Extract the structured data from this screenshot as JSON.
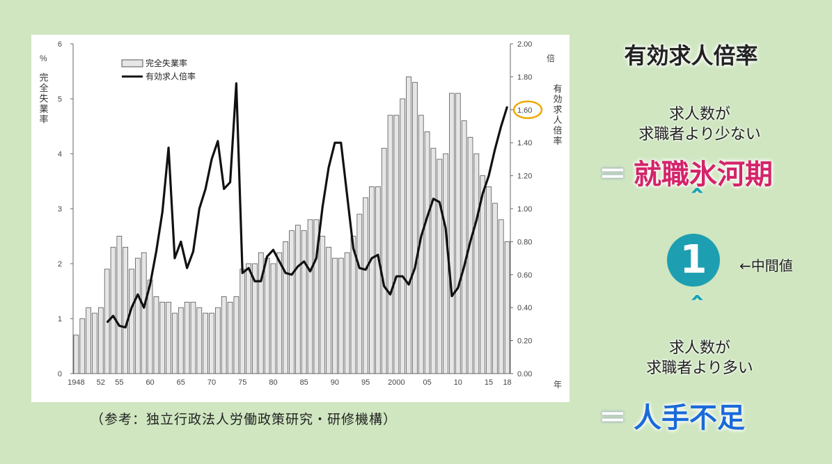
{
  "chart_data": {
    "type": "bar+line",
    "categories": [
      "1948",
      "1949",
      "1950",
      "1951",
      "1952",
      "1953",
      "1954",
      "1955",
      "1956",
      "1957",
      "1958",
      "1959",
      "1960",
      "1961",
      "1962",
      "1963",
      "1964",
      "1965",
      "1966",
      "1967",
      "1968",
      "1969",
      "1970",
      "1971",
      "1972",
      "1973",
      "1974",
      "1975",
      "1976",
      "1977",
      "1978",
      "1979",
      "1980",
      "1981",
      "1982",
      "1983",
      "1984",
      "1985",
      "1986",
      "1987",
      "1988",
      "1989",
      "1990",
      "1991",
      "1992",
      "1993",
      "1994",
      "1995",
      "1996",
      "1997",
      "1998",
      "1999",
      "2000",
      "2001",
      "2002",
      "2003",
      "2004",
      "2005",
      "2006",
      "2007",
      "2008",
      "2009",
      "2010",
      "2011",
      "2012",
      "2013",
      "2014",
      "2015",
      "2016",
      "2017",
      "2018"
    ],
    "x_tick_labels": [
      {
        "year": "1948",
        "label": "1948"
      },
      {
        "year": "1952",
        "label": "52"
      },
      {
        "year": "1955",
        "label": "55"
      },
      {
        "year": "1960",
        "label": "60"
      },
      {
        "year": "1965",
        "label": "65"
      },
      {
        "year": "1970",
        "label": "70"
      },
      {
        "year": "1975",
        "label": "75"
      },
      {
        "year": "1980",
        "label": "80"
      },
      {
        "year": "1985",
        "label": "85"
      },
      {
        "year": "1990",
        "label": "90"
      },
      {
        "year": "1995",
        "label": "95"
      },
      {
        "year": "2000",
        "label": "2000"
      },
      {
        "year": "2005",
        "label": "05"
      },
      {
        "year": "2010",
        "label": "10"
      },
      {
        "year": "2015",
        "label": "15"
      },
      {
        "year": "2018",
        "label": "18"
      }
    ],
    "x_unit": "年",
    "series": [
      {
        "name": "完全失業率",
        "kind": "bar",
        "axis": "left",
        "values": [
          0.7,
          1.0,
          1.2,
          1.1,
          1.2,
          1.9,
          2.3,
          2.5,
          2.3,
          1.9,
          2.1,
          2.2,
          1.7,
          1.4,
          1.3,
          1.3,
          1.1,
          1.2,
          1.3,
          1.3,
          1.2,
          1.1,
          1.1,
          1.2,
          1.4,
          1.3,
          1.4,
          1.9,
          2.0,
          2.0,
          2.2,
          2.1,
          2.0,
          2.2,
          2.4,
          2.6,
          2.7,
          2.6,
          2.8,
          2.8,
          2.5,
          2.3,
          2.1,
          2.1,
          2.2,
          2.5,
          2.9,
          3.2,
          3.4,
          3.4,
          4.1,
          4.7,
          4.7,
          5.0,
          5.4,
          5.3,
          4.7,
          4.4,
          4.1,
          3.9,
          4.0,
          5.1,
          5.1,
          4.6,
          4.3,
          4.0,
          3.6,
          3.4,
          3.1,
          2.8,
          2.4
        ]
      },
      {
        "name": "有効求人倍率",
        "kind": "line",
        "axis": "right",
        "values": [
          null,
          null,
          null,
          null,
          null,
          0.31,
          0.35,
          0.29,
          0.28,
          0.4,
          0.48,
          0.4,
          0.54,
          0.74,
          0.98,
          1.37,
          0.7,
          0.8,
          0.64,
          0.74,
          1.0,
          1.12,
          1.3,
          1.41,
          1.12,
          1.16,
          1.76,
          0.61,
          0.64,
          0.56,
          0.56,
          0.71,
          0.75,
          0.68,
          0.61,
          0.6,
          0.65,
          0.68,
          0.62,
          0.7,
          1.01,
          1.25,
          1.4,
          1.4,
          1.08,
          0.76,
          0.64,
          0.63,
          0.7,
          0.72,
          0.53,
          0.48,
          0.59,
          0.59,
          0.54,
          0.64,
          0.83,
          0.95,
          1.06,
          1.04,
          0.88,
          0.47,
          0.52,
          0.65,
          0.8,
          0.93,
          1.09,
          1.2,
          1.36,
          1.5,
          1.62
        ]
      }
    ],
    "left_axis": {
      "unit": "%",
      "label": "完全失業率",
      "ylim": [
        0,
        6
      ],
      "ticks": [
        "0",
        "1",
        "2",
        "3",
        "4",
        "5",
        "6"
      ]
    },
    "right_axis": {
      "unit": "倍",
      "label": "有効求人倍率",
      "ylim": [
        0,
        2.0
      ],
      "ticks": [
        "0.00",
        "0.20",
        "0.40",
        "0.60",
        "0.80",
        "1.00",
        "1.20",
        "1.40",
        "1.60",
        "1.80",
        "2.00"
      ],
      "highlight_tick": "1.60",
      "highlight_color": "#f0a800"
    },
    "legend": {
      "placement": "top-left",
      "bar_label": "完全失業率",
      "line_label": "有効求人倍率"
    },
    "grid": false
  },
  "source_note": "（参考：独立行政法人労働政策研究・研修機構）",
  "side": {
    "title": "有効求人倍率",
    "top_text_1": "求人数が",
    "top_text_2": "求職者より少ない",
    "top_eq": "＝",
    "top_result": "就職氷河期",
    "top_result_color": "#d4246a",
    "chevron": "＾",
    "center_value": "1",
    "center_label": "←中間値",
    "bottom_text_1": "求人数が",
    "bottom_text_2": "求職者より多い",
    "bottom_eq": "＝",
    "bottom_result": "人手不足",
    "bottom_result_color": "#1a6ad9",
    "accent_color": "#1e9fb1"
  }
}
